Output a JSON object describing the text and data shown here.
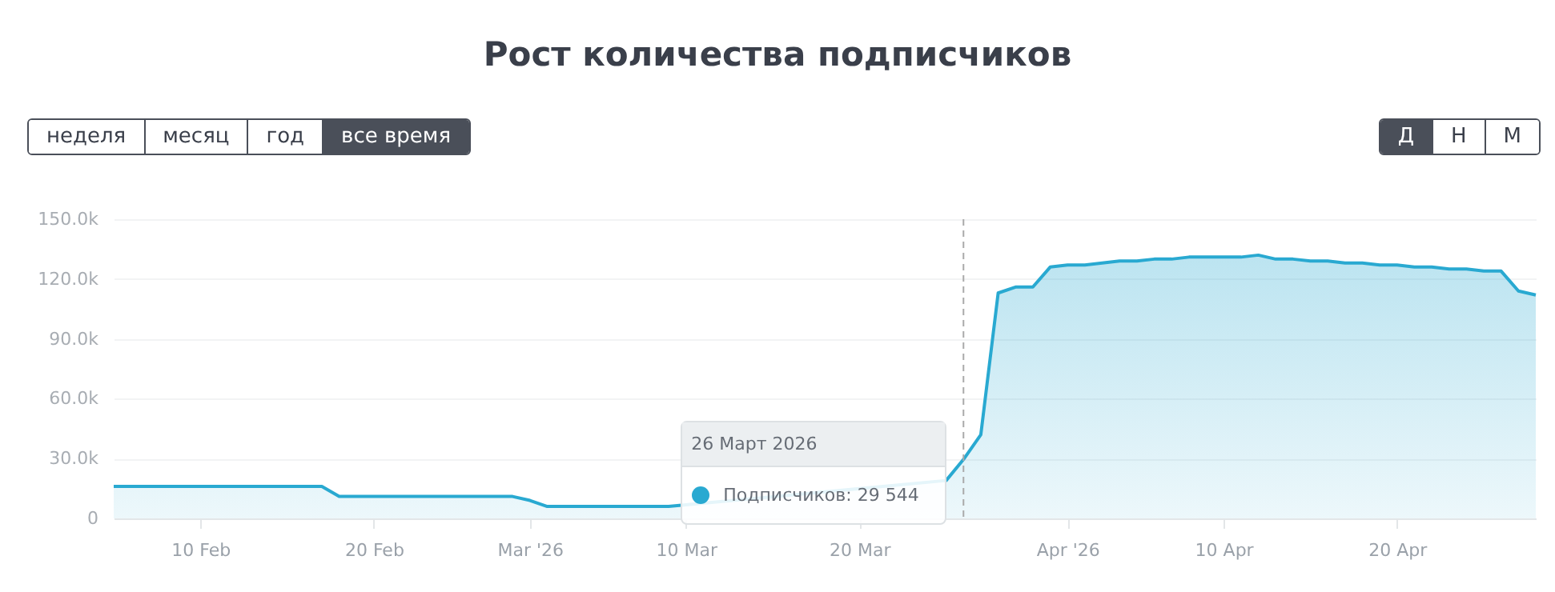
{
  "chart_data": {
    "type": "area",
    "title": "Рост количества подписчиков",
    "annotations": [
      "26 Март 2026",
      "Подписчиков: 29 544",
      "неделя",
      "месяц",
      "год",
      "все время",
      "Д",
      "Н",
      "М"
    ],
    "x": [
      "2026-02-05",
      "2026-02-06",
      "2026-02-07",
      "2026-02-08",
      "2026-02-09",
      "2026-02-10",
      "2026-02-11",
      "2026-02-12",
      "2026-02-13",
      "2026-02-14",
      "2026-02-15",
      "2026-02-16",
      "2026-02-17",
      "2026-02-18",
      "2026-02-19",
      "2026-02-20",
      "2026-02-21",
      "2026-02-22",
      "2026-02-23",
      "2026-02-24",
      "2026-02-25",
      "2026-02-26",
      "2026-02-27",
      "2026-02-28",
      "2026-03-01",
      "2026-03-02",
      "2026-03-03",
      "2026-03-04",
      "2026-03-05",
      "2026-03-06",
      "2026-03-07",
      "2026-03-08",
      "2026-03-09",
      "2026-03-10",
      "2026-03-11",
      "2026-03-12",
      "2026-03-13",
      "2026-03-14",
      "2026-03-15",
      "2026-03-16",
      "2026-03-17",
      "2026-03-18",
      "2026-03-19",
      "2026-03-20",
      "2026-03-21",
      "2026-03-22",
      "2026-03-23",
      "2026-03-24",
      "2026-03-25",
      "2026-03-26",
      "2026-03-27",
      "2026-03-28",
      "2026-03-29",
      "2026-03-30",
      "2026-03-31",
      "2026-04-01",
      "2026-04-02",
      "2026-04-03",
      "2026-04-04",
      "2026-04-05",
      "2026-04-06",
      "2026-04-07",
      "2026-04-08",
      "2026-04-09",
      "2026-04-10",
      "2026-04-11",
      "2026-04-12",
      "2026-04-13",
      "2026-04-14",
      "2026-04-15",
      "2026-04-16",
      "2026-04-17",
      "2026-04-18",
      "2026-04-19",
      "2026-04-20",
      "2026-04-21",
      "2026-04-22",
      "2026-04-23",
      "2026-04-24",
      "2026-04-25",
      "2026-04-26",
      "2026-04-27",
      "2026-04-28"
    ],
    "series": [
      {
        "color": "#29a9d1",
        "values": [
          16000,
          16000,
          16000,
          16000,
          16000,
          16000,
          16000,
          16000,
          16000,
          16000,
          16000,
          16000,
          16000,
          11000,
          11000,
          11000,
          11000,
          11000,
          11000,
          11000,
          11000,
          11000,
          11000,
          11000,
          9000,
          6000,
          6000,
          6000,
          6000,
          6000,
          6000,
          6000,
          6000,
          null,
          null,
          null,
          null,
          null,
          null,
          null,
          null,
          null,
          null,
          null,
          null,
          null,
          null,
          null,
          19000,
          29544,
          42000,
          113000,
          116000,
          116000,
          126000,
          127000,
          127000,
          128000,
          129000,
          129000,
          130000,
          130000,
          131000,
          131000,
          131000,
          131000,
          132000,
          130000,
          130000,
          129000,
          129000,
          128000,
          128000,
          127000,
          127000,
          126000,
          126000,
          125000,
          125000,
          124000,
          124000,
          114000,
          112000
        ]
      }
    ],
    "xlim": [
      "2026-02-05",
      "2026-04-28"
    ],
    "xticks": [
      {
        "value": "2026-02-10",
        "label": "10 Feb"
      },
      {
        "value": "2026-02-20",
        "label": "20 Feb"
      },
      {
        "value": "2026-03-01",
        "label": "Mar '26"
      },
      {
        "value": "2026-03-10",
        "label": "10 Mar"
      },
      {
        "value": "2026-03-20",
        "label": "20 Mar"
      },
      {
        "value": "2026-04-01",
        "label": "Apr '26"
      },
      {
        "value": "2026-04-10",
        "label": "10 Apr"
      },
      {
        "value": "2026-04-20",
        "label": "20 Apr"
      }
    ],
    "ylim": [
      0,
      150000
    ],
    "yticks": [
      {
        "value": 0,
        "label": "0"
      },
      {
        "value": 30000,
        "label": "30.0k"
      },
      {
        "value": 60000,
        "label": "60.0k"
      },
      {
        "value": 90000,
        "label": "90.0k"
      },
      {
        "value": 120000,
        "label": "120.0k"
      },
      {
        "value": 150000,
        "label": "150.0k"
      }
    ],
    "grid": "y",
    "ref_lines": [
      {
        "axis": "x",
        "value": "2026-03-26",
        "color": "#aaaaaa",
        "line_style": "dashed"
      }
    ]
  }
}
